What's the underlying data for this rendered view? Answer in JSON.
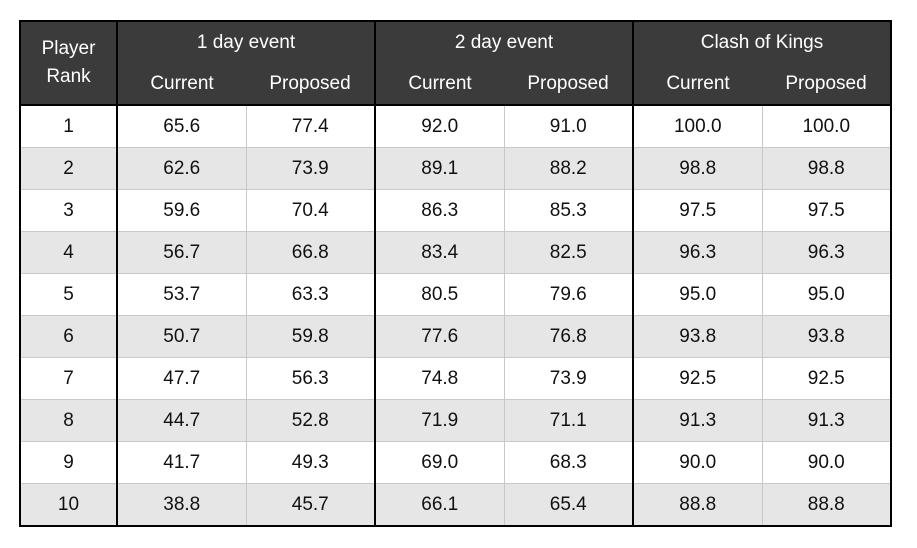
{
  "table": {
    "rank_header": "Player Rank",
    "groups": [
      {
        "title": "1 day event",
        "columns": [
          "Current",
          "Proposed"
        ]
      },
      {
        "title": "2 day event",
        "columns": [
          "Current",
          "Proposed"
        ]
      },
      {
        "title": "Clash of Kings",
        "columns": [
          "Current",
          "Proposed"
        ]
      }
    ],
    "rows": [
      [
        "1",
        "65.6",
        "77.4",
        "92.0",
        "91.0",
        "100.0",
        "100.0"
      ],
      [
        "2",
        "62.6",
        "73.9",
        "89.1",
        "88.2",
        "98.8",
        "98.8"
      ],
      [
        "3",
        "59.6",
        "70.4",
        "86.3",
        "85.3",
        "97.5",
        "97.5"
      ],
      [
        "4",
        "56.7",
        "66.8",
        "83.4",
        "82.5",
        "96.3",
        "96.3"
      ],
      [
        "5",
        "53.7",
        "63.3",
        "80.5",
        "79.6",
        "95.0",
        "95.0"
      ],
      [
        "6",
        "50.7",
        "59.8",
        "77.6",
        "76.8",
        "93.8",
        "93.8"
      ],
      [
        "7",
        "47.7",
        "56.3",
        "74.8",
        "73.9",
        "92.5",
        "92.5"
      ],
      [
        "8",
        "44.7",
        "52.8",
        "71.9",
        "71.1",
        "91.3",
        "91.3"
      ],
      [
        "9",
        "41.7",
        "49.3",
        "69.0",
        "68.3",
        "90.0",
        "90.0"
      ],
      [
        "10",
        "38.8",
        "45.7",
        "66.1",
        "65.4",
        "88.8",
        "88.8"
      ]
    ]
  }
}
